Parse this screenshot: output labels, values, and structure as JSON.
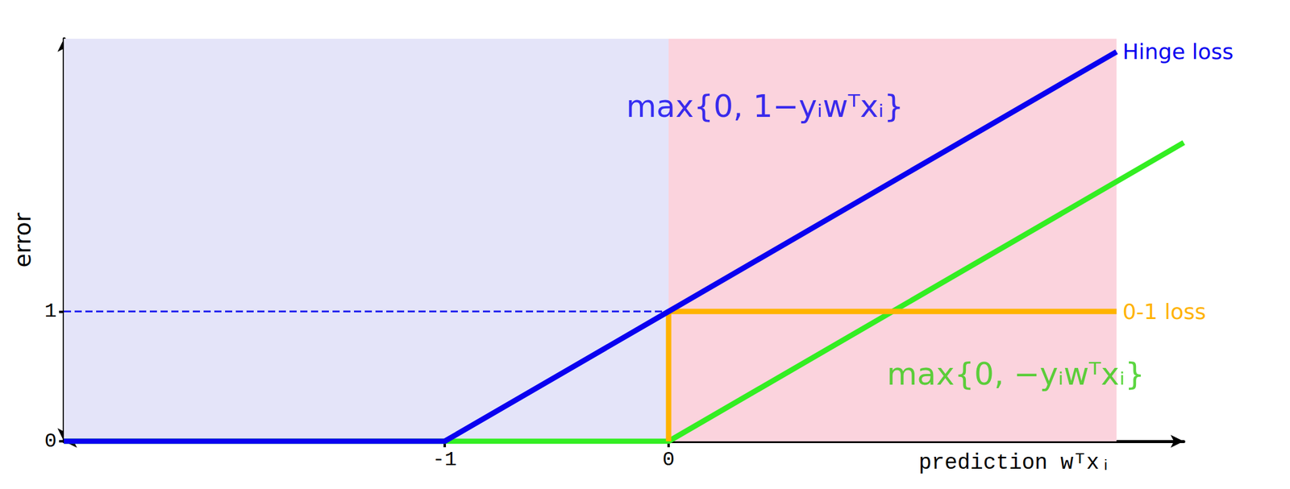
{
  "chart_data": {
    "type": "line",
    "xlabel": "prediction wᵀxᵢ",
    "ylabel": "error",
    "xlim": [
      -2.7,
      2.3
    ],
    "ylim": [
      0,
      3.1
    ],
    "xticks": [
      -1,
      0
    ],
    "yticks": [
      0,
      1
    ],
    "grid": false,
    "regions": [
      {
        "x": [
          -2.7,
          0
        ],
        "color": "#e4e4f9"
      },
      {
        "x": [
          0,
          2.0
        ],
        "color": "#fbd3dd"
      }
    ],
    "series": [
      {
        "color": "#1a1aee",
        "line_style": "dashed",
        "x": [
          -2.7,
          2.0
        ],
        "values": [
          1,
          1
        ]
      },
      {
        "color": "#33ee22",
        "line_style": "solid",
        "x": [
          -2.7,
          0,
          2.3
        ],
        "values": [
          0,
          0,
          2.3
        ]
      },
      {
        "name": "0-1 loss",
        "color": "#ffb300",
        "line_style": "solid",
        "x": [
          0,
          0,
          2.0
        ],
        "values": [
          0,
          1,
          1
        ]
      },
      {
        "name": "Hinge loss",
        "color": "#0a00f0",
        "line_style": "solid",
        "x": [
          -2.7,
          -1,
          0,
          2.0
        ],
        "values": [
          0,
          0,
          1,
          3.0
        ]
      }
    ],
    "annotations": [
      {
        "text": "max{0, 1−yᵢwᵀxᵢ}",
        "x": 0.43,
        "y": 2.58,
        "color": "#0a00f0"
      },
      {
        "text": "max{0, −yᵢwᵀxᵢ}",
        "x": 1.55,
        "y": 0.52,
        "color": "#33cc11"
      }
    ]
  }
}
